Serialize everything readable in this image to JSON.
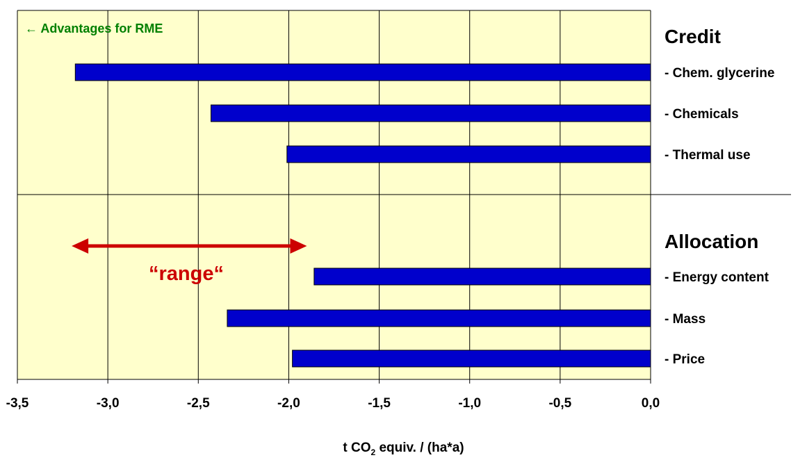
{
  "chart_data": {
    "type": "bar",
    "orientation": "horizontal",
    "groups": [
      {
        "title": "Credit",
        "categories": [
          "- Chem. glycerine",
          "- Chemicals",
          "- Thermal use"
        ],
        "values": [
          -3.18,
          -2.43,
          -2.01
        ]
      },
      {
        "title": "Allocation",
        "categories": [
          "- Energy content",
          "- Mass",
          "- Price"
        ],
        "values": [
          -1.86,
          -2.34,
          -1.98
        ]
      }
    ],
    "xlim": [
      -3.5,
      0.0
    ],
    "xticks": [
      -3.5,
      -3.0,
      -2.5,
      -2.0,
      -1.5,
      -1.0,
      -0.5,
      0.0
    ],
    "xtick_labels": [
      "-3,5",
      "-3,0",
      "-2,5",
      "-2,0",
      "-1,5",
      "-1,0",
      "-0,5",
      "0,0"
    ],
    "xlabel": {
      "pre": "t CO",
      "sub": "2",
      "post": " equiv. / (ha*a)"
    },
    "grid": true,
    "annotations": {
      "advantage": "← Advantages for RME",
      "range": "“range“",
      "range_arrow": [
        -3.2,
        -1.9
      ]
    },
    "colors": {
      "plot_bg": "#ffffcc",
      "bar": "#0000cc",
      "advantage_text": "#008000",
      "range": "#cc0000"
    }
  }
}
